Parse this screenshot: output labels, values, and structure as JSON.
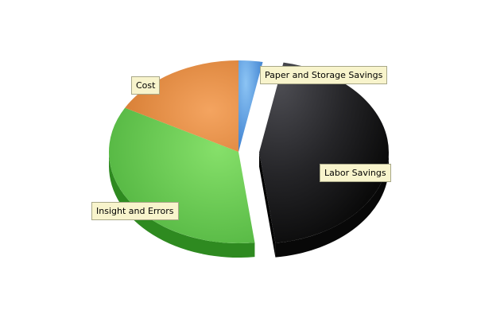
{
  "chart_data": {
    "type": "pie",
    "style": "3d",
    "title": "",
    "slices": [
      {
        "label": "Paper and Storage Savings",
        "value": 3,
        "color": "#5b9ee0",
        "exploded": false
      },
      {
        "label": "Labor Savings",
        "value": 45,
        "color": "#2a2a2e",
        "exploded": true
      },
      {
        "label": "Insight and Errors",
        "value": 35,
        "color": "#6ccc55",
        "exploded": false
      },
      {
        "label": "Cost",
        "value": 17,
        "color": "#e8914a",
        "exploded": false
      }
    ],
    "legend": "none"
  }
}
